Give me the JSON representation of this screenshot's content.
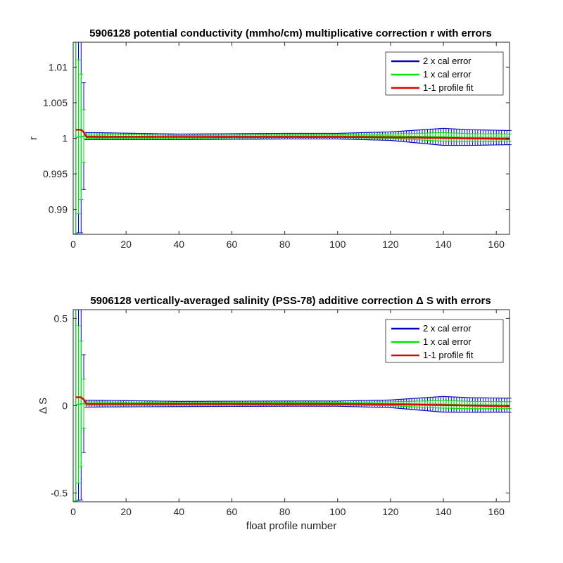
{
  "chart_data": [
    {
      "type": "line",
      "title": "5906128 potential conductivity (mmho/cm) multiplicative correction r with errors",
      "xlabel": "",
      "ylabel": "r",
      "xlim": [
        0,
        165
      ],
      "ylim": [
        0.9865,
        1.0135
      ],
      "xticks": [
        0,
        20,
        40,
        60,
        80,
        100,
        120,
        140,
        160
      ],
      "yticks": [
        0.99,
        0.995,
        1,
        1.005,
        1.01
      ],
      "ytick_labels": [
        "0.99",
        "0.995",
        "1",
        "1.005",
        "1.01"
      ],
      "grid": false,
      "legend_position": "top-right",
      "series": [
        {
          "name": "2 x cal error",
          "color": "#0000c8",
          "style": "errorbars",
          "center_points": [
            [
              1,
              1.0001
            ],
            [
              2,
              1.0002
            ],
            [
              3,
              1.0002
            ],
            [
              4,
              1.0003
            ],
            [
              6,
              1.0003
            ],
            [
              10,
              1.0003
            ],
            [
              40,
              1.0002
            ],
            [
              80,
              1.0003
            ],
            [
              100,
              1.0003
            ],
            [
              120,
              1.0003
            ],
            [
              140,
              1.0002
            ],
            [
              150,
              1.0001
            ],
            [
              165,
              1.0001
            ]
          ],
          "half_width_points": [
            [
              1,
              0.0135
            ],
            [
              2,
              0.0135
            ],
            [
              3,
              0.0135
            ],
            [
              4,
              0.0075
            ],
            [
              5,
              0.0005
            ],
            [
              40,
              0.0004
            ],
            [
              100,
              0.0004
            ],
            [
              120,
              0.0006
            ],
            [
              140,
              0.0012
            ],
            [
              150,
              0.0011
            ],
            [
              165,
              0.001
            ]
          ]
        },
        {
          "name": "1 x cal error",
          "color": "#00e800",
          "style": "errorbars",
          "center_points": [
            [
              1,
              1.0001
            ],
            [
              2,
              1.0002
            ],
            [
              3,
              1.0002
            ],
            [
              4,
              1.0003
            ],
            [
              6,
              1.0003
            ],
            [
              10,
              1.0003
            ],
            [
              40,
              1.0002
            ],
            [
              80,
              1.0003
            ],
            [
              100,
              1.0003
            ],
            [
              120,
              1.0003
            ],
            [
              140,
              1.0002
            ],
            [
              150,
              1.0001
            ],
            [
              165,
              1.0001
            ]
          ],
          "half_width_points": [
            [
              1,
              0.0135
            ],
            [
              2,
              0.0108
            ],
            [
              3,
              0.0088
            ],
            [
              4,
              0.0037
            ],
            [
              5,
              0.0003
            ],
            [
              40,
              0.0002
            ],
            [
              100,
              0.0002
            ],
            [
              120,
              0.0003
            ],
            [
              140,
              0.0006
            ],
            [
              150,
              0.00055
            ],
            [
              165,
              0.0005
            ]
          ]
        },
        {
          "name": "1-1 profile fit",
          "color": "#e00000",
          "style": "line",
          "points": [
            [
              1,
              1.0012
            ],
            [
              3.5,
              1.0012
            ],
            [
              5,
              1.0002
            ],
            [
              40,
              1.0002
            ],
            [
              80,
              1.0002
            ],
            [
              100,
              1.0002
            ],
            [
              130,
              1.0001
            ],
            [
              165,
              0.9999
            ]
          ]
        }
      ]
    },
    {
      "type": "line",
      "title": "5906128 vertically-averaged salinity (PSS-78) additive correction Δ S with errors",
      "xlabel": "float profile number",
      "ylabel": "Δ S",
      "xlim": [
        0,
        165
      ],
      "ylim": [
        -0.55,
        0.55
      ],
      "xticks": [
        0,
        20,
        40,
        60,
        80,
        100,
        120,
        140,
        160
      ],
      "yticks": [
        -0.5,
        0,
        0.5
      ],
      "ytick_labels": [
        "-0.5",
        "0",
        "0.5"
      ],
      "grid": false,
      "legend_position": "top-right",
      "series": [
        {
          "name": "2 x cal error",
          "color": "#0000c8",
          "style": "errorbars",
          "center_points": [
            [
              1,
              0.005
            ],
            [
              2,
              0.008
            ],
            [
              3,
              0.01
            ],
            [
              4,
              0.012
            ],
            [
              6,
              0.012
            ],
            [
              10,
              0.012
            ],
            [
              40,
              0.01
            ],
            [
              80,
              0.012
            ],
            [
              100,
              0.012
            ],
            [
              120,
              0.011
            ],
            [
              140,
              0.008
            ],
            [
              150,
              0.004
            ],
            [
              165,
              0.003
            ]
          ],
          "half_width_points": [
            [
              1,
              0.55
            ],
            [
              2,
              0.55
            ],
            [
              3,
              0.55
            ],
            [
              4,
              0.28
            ],
            [
              5,
              0.02
            ],
            [
              40,
              0.015
            ],
            [
              100,
              0.015
            ],
            [
              120,
              0.022
            ],
            [
              140,
              0.045
            ],
            [
              150,
              0.042
            ],
            [
              165,
              0.04
            ]
          ]
        },
        {
          "name": "1 x cal error",
          "color": "#00e800",
          "style": "errorbars",
          "center_points": [
            [
              1,
              0.005
            ],
            [
              2,
              0.008
            ],
            [
              3,
              0.01
            ],
            [
              4,
              0.012
            ],
            [
              6,
              0.012
            ],
            [
              10,
              0.012
            ],
            [
              40,
              0.01
            ],
            [
              80,
              0.012
            ],
            [
              100,
              0.012
            ],
            [
              120,
              0.011
            ],
            [
              140,
              0.008
            ],
            [
              150,
              0.004
            ],
            [
              165,
              0.003
            ]
          ],
          "half_width_points": [
            [
              1,
              0.55
            ],
            [
              2,
              0.45
            ],
            [
              3,
              0.36
            ],
            [
              4,
              0.14
            ],
            [
              5,
              0.01
            ],
            [
              40,
              0.008
            ],
            [
              100,
              0.008
            ],
            [
              120,
              0.011
            ],
            [
              140,
              0.022
            ],
            [
              150,
              0.021
            ],
            [
              165,
              0.02
            ]
          ]
        },
        {
          "name": "1-1 profile fit",
          "color": "#e00000",
          "style": "line",
          "points": [
            [
              1,
              0.048
            ],
            [
              3.5,
              0.048
            ],
            [
              5,
              0.01
            ],
            [
              40,
              0.01
            ],
            [
              80,
              0.01
            ],
            [
              100,
              0.01
            ],
            [
              130,
              0.006
            ],
            [
              165,
              -0.003
            ]
          ]
        }
      ]
    }
  ]
}
